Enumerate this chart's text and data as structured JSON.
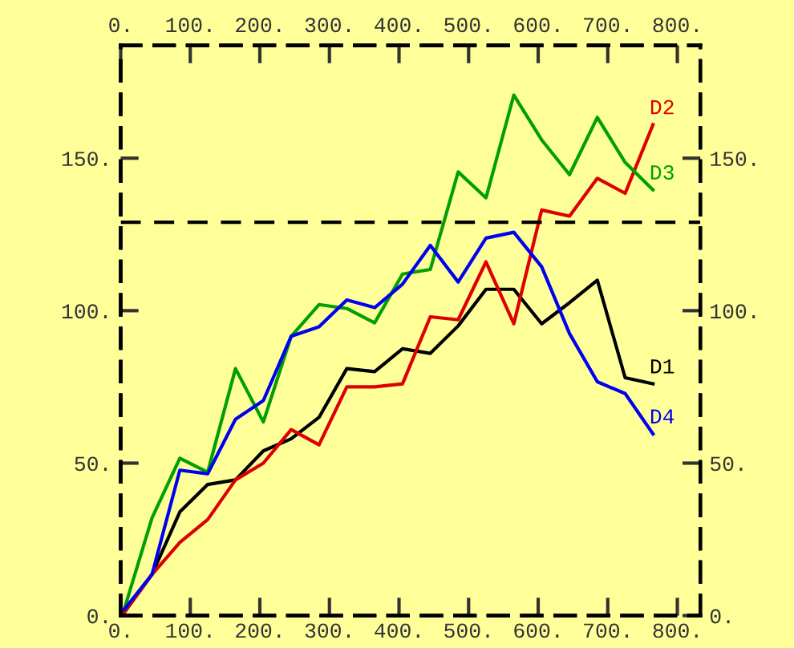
{
  "chart_data": {
    "type": "line",
    "x": [
      5,
      45,
      85,
      125,
      165,
      205,
      245,
      285,
      325,
      365,
      405,
      445,
      485,
      525,
      565,
      605,
      645,
      685,
      725,
      765
    ],
    "series": [
      {
        "name": "D1",
        "color": "#000000",
        "values": [
          1,
          13.5,
          34,
          43,
          44.5,
          54,
          58,
          65,
          81,
          80,
          87.5,
          86,
          95,
          107,
          107,
          95.7,
          102.6,
          110,
          78,
          76
        ]
      },
      {
        "name": "D2",
        "color": "#dd0000",
        "values": [
          1,
          13.5,
          24,
          31.5,
          44.5,
          50,
          61,
          56,
          75,
          75,
          76,
          98,
          97,
          116,
          95.7,
          133,
          131,
          143.4,
          138.5,
          161
        ]
      },
      {
        "name": "D3",
        "color": "#00a000",
        "values": [
          2,
          32,
          51.6,
          47,
          81,
          63.5,
          91.6,
          102,
          100.7,
          96,
          112,
          113.5,
          145.5,
          137,
          170.7,
          156,
          144.6,
          163.4,
          148.6,
          139.6
        ]
      },
      {
        "name": "D4",
        "color": "#0000ee",
        "values": [
          2,
          13.5,
          47.7,
          46.5,
          64.4,
          70.5,
          91.6,
          94.7,
          103.5,
          101,
          108.7,
          121.4,
          109.4,
          123.8,
          125.7,
          114.4,
          92.5,
          76.7,
          72.8,
          59.6
        ]
      }
    ],
    "xlim": [
      0,
      833
    ],
    "ylim": [
      0,
      187
    ],
    "x2lim": [
      0,
      833
    ],
    "y2lim": [
      0,
      187
    ],
    "xticks": [
      {
        "value": 0,
        "label": "0."
      },
      {
        "value": 100,
        "label": "100."
      },
      {
        "value": 200,
        "label": "200."
      },
      {
        "value": 300,
        "label": "300."
      },
      {
        "value": 400,
        "label": "400."
      },
      {
        "value": 500,
        "label": "500."
      },
      {
        "value": 600,
        "label": "600."
      },
      {
        "value": 700,
        "label": "700."
      },
      {
        "value": 800,
        "label": "800."
      }
    ],
    "x2ticks": [
      {
        "value": 0,
        "label": "0."
      },
      {
        "value": 100,
        "label": "100."
      },
      {
        "value": 200,
        "label": "200."
      },
      {
        "value": 300,
        "label": "300."
      },
      {
        "value": 400,
        "label": "400."
      },
      {
        "value": 500,
        "label": "500."
      },
      {
        "value": 600,
        "label": "600."
      },
      {
        "value": 700,
        "label": "700."
      },
      {
        "value": 800,
        "label": "800."
      }
    ],
    "yticks": [
      {
        "value": 0,
        "label": "0."
      },
      {
        "value": 50,
        "label": "50."
      },
      {
        "value": 100,
        "label": "100."
      },
      {
        "value": 150,
        "label": "150."
      }
    ],
    "y2ticks": [
      {
        "value": 0,
        "label": "0."
      },
      {
        "value": 50,
        "label": "50."
      },
      {
        "value": 100,
        "label": "100."
      },
      {
        "value": 150,
        "label": "150."
      }
    ],
    "ref_lines": [
      {
        "axis": "y",
        "value": 129,
        "color": "#000000",
        "line_style": "dashed"
      }
    ],
    "grid": false,
    "legend": false,
    "marker": "none",
    "line_style": "solid"
  }
}
